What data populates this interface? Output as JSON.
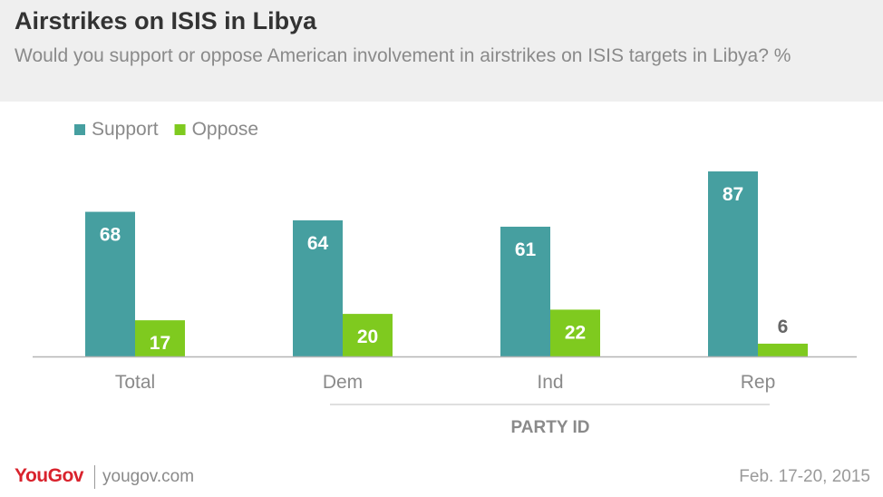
{
  "chart_data": {
    "type": "bar",
    "title": "Airstrikes on ISIS in Libya",
    "subtitle": "Would you support or oppose American involvement in airstrikes on ISIS targets in Libya? %",
    "categories": [
      "Total",
      "Dem",
      "Ind",
      "Rep"
    ],
    "group_label": "PARTY ID",
    "series": [
      {
        "name": "Support",
        "values": [
          68,
          64,
          61,
          87
        ],
        "color": "#469fa0"
      },
      {
        "name": "Oppose",
        "values": [
          17,
          20,
          22,
          6
        ],
        "color": "#7fca1f"
      }
    ],
    "ylim": [
      0,
      100
    ],
    "grid": false,
    "legend": "top-left"
  },
  "footer": {
    "brand": "YouGov",
    "site": "yougov.com",
    "date": "Feb. 17-20, 2015"
  }
}
